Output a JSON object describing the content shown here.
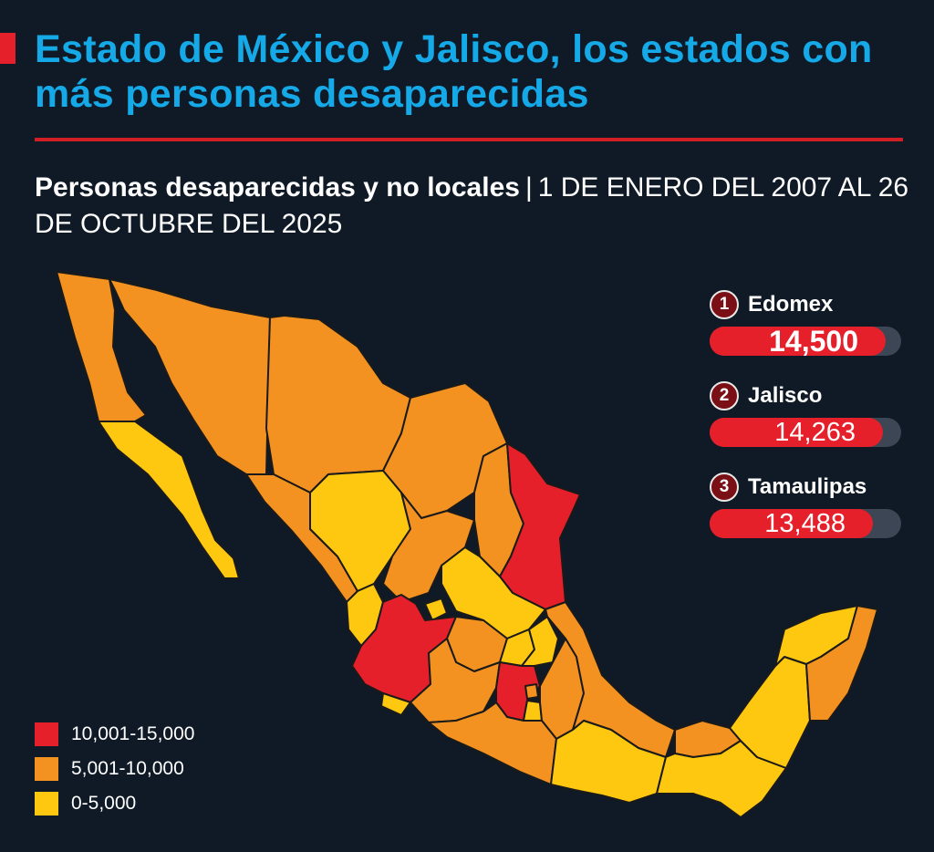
{
  "header": {
    "title": "Estado de México y Jalisco, los estados con más personas desaparecidas",
    "subtitle_bold": "Personas desaparecidas y no locales",
    "subtitle_sep": "|",
    "subtitle_dates": "1 DE ENERO DEL 2007 AL 26 DE OCTUBRE DEL 2025"
  },
  "colors": {
    "background": "#0f1a26",
    "title": "#15a9e8",
    "accent_red": "#e5202a",
    "tier_high": "#e5202a",
    "tier_mid": "#f39220",
    "tier_low": "#fdc80f",
    "borders": "#1a1a1a"
  },
  "ranking": [
    {
      "rank": "1",
      "state": "Edomex",
      "value": "14,500",
      "amount": 14500
    },
    {
      "rank": "2",
      "state": "Jalisco",
      "value": "14,263",
      "amount": 14263
    },
    {
      "rank": "3",
      "state": "Tamaulipas",
      "value": "13,488",
      "amount": 13488
    }
  ],
  "legend": [
    {
      "label": "10,001-15,000",
      "tier": "high"
    },
    {
      "label": "5,001-10,000",
      "tier": "mid"
    },
    {
      "label": "0-5,000",
      "tier": "low"
    }
  ]
}
